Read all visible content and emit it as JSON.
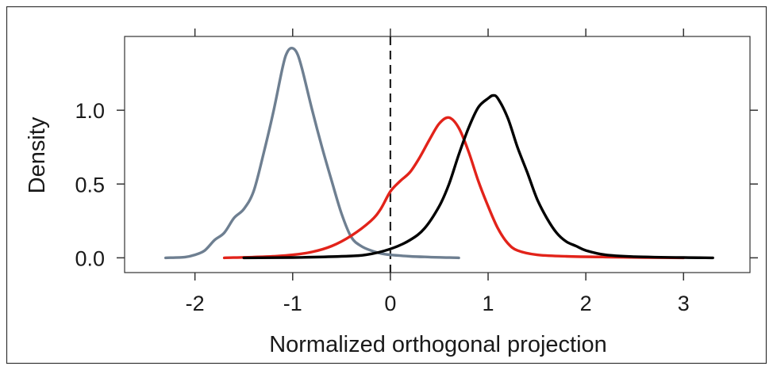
{
  "chart_data": {
    "type": "line",
    "xlabel": "Normalized orthogonal projection",
    "ylabel": "Density",
    "xlim": [
      -2.72,
      3.68
    ],
    "ylim": [
      -0.1,
      1.5
    ],
    "x_ticks": [
      -2,
      -1,
      0,
      1,
      2,
      3
    ],
    "x_tick_labels": [
      "-2",
      "-1",
      "0",
      "1",
      "2",
      "3"
    ],
    "y_ticks": [
      0.0,
      0.5,
      1.0
    ],
    "y_tick_labels": [
      "0.0",
      "0.5",
      "1.0"
    ],
    "grid": false,
    "reference_line": {
      "x": 0,
      "style": "dashed"
    },
    "series": [
      {
        "color": "#6e7f91",
        "x": [
          -2.3,
          -2.1,
          -2.0,
          -1.9,
          -1.8,
          -1.7,
          -1.6,
          -1.5,
          -1.4,
          -1.3,
          -1.2,
          -1.1,
          -1.05,
          -1.0,
          -0.95,
          -0.9,
          -0.8,
          -0.7,
          -0.6,
          -0.5,
          -0.4,
          -0.3,
          -0.2,
          -0.1,
          0.0,
          0.2,
          0.4,
          0.7
        ],
        "y": [
          0.0,
          0.005,
          0.02,
          0.05,
          0.12,
          0.17,
          0.27,
          0.33,
          0.45,
          0.7,
          0.98,
          1.3,
          1.4,
          1.42,
          1.38,
          1.27,
          1.0,
          0.75,
          0.52,
          0.3,
          0.14,
          0.08,
          0.05,
          0.03,
          0.02,
          0.01,
          0.005,
          0.0
        ]
      },
      {
        "color": "#e2231a",
        "x": [
          -1.7,
          -1.4,
          -1.2,
          -1.0,
          -0.8,
          -0.6,
          -0.4,
          -0.2,
          -0.1,
          0.0,
          0.1,
          0.2,
          0.3,
          0.4,
          0.5,
          0.6,
          0.7,
          0.8,
          0.9,
          1.0,
          1.1,
          1.2,
          1.3,
          1.5,
          1.8,
          2.2,
          2.6,
          3.0
        ],
        "y": [
          0.0,
          0.005,
          0.01,
          0.02,
          0.04,
          0.08,
          0.15,
          0.25,
          0.33,
          0.45,
          0.52,
          0.58,
          0.68,
          0.8,
          0.91,
          0.95,
          0.88,
          0.72,
          0.52,
          0.35,
          0.2,
          0.1,
          0.05,
          0.02,
          0.01,
          0.005,
          0.002,
          0.0
        ]
      },
      {
        "color": "#000000",
        "x": [
          -1.5,
          -1.0,
          -0.5,
          -0.25,
          0.0,
          0.2,
          0.35,
          0.5,
          0.6,
          0.7,
          0.8,
          0.9,
          1.0,
          1.05,
          1.1,
          1.2,
          1.3,
          1.4,
          1.5,
          1.6,
          1.7,
          1.8,
          1.9,
          2.0,
          2.2,
          2.5,
          3.0,
          3.3
        ],
        "y": [
          0.0,
          0.002,
          0.01,
          0.02,
          0.06,
          0.12,
          0.2,
          0.35,
          0.5,
          0.7,
          0.88,
          1.02,
          1.08,
          1.1,
          1.08,
          0.95,
          0.75,
          0.58,
          0.4,
          0.27,
          0.17,
          0.11,
          0.08,
          0.05,
          0.02,
          0.008,
          0.002,
          0.0
        ]
      }
    ]
  }
}
